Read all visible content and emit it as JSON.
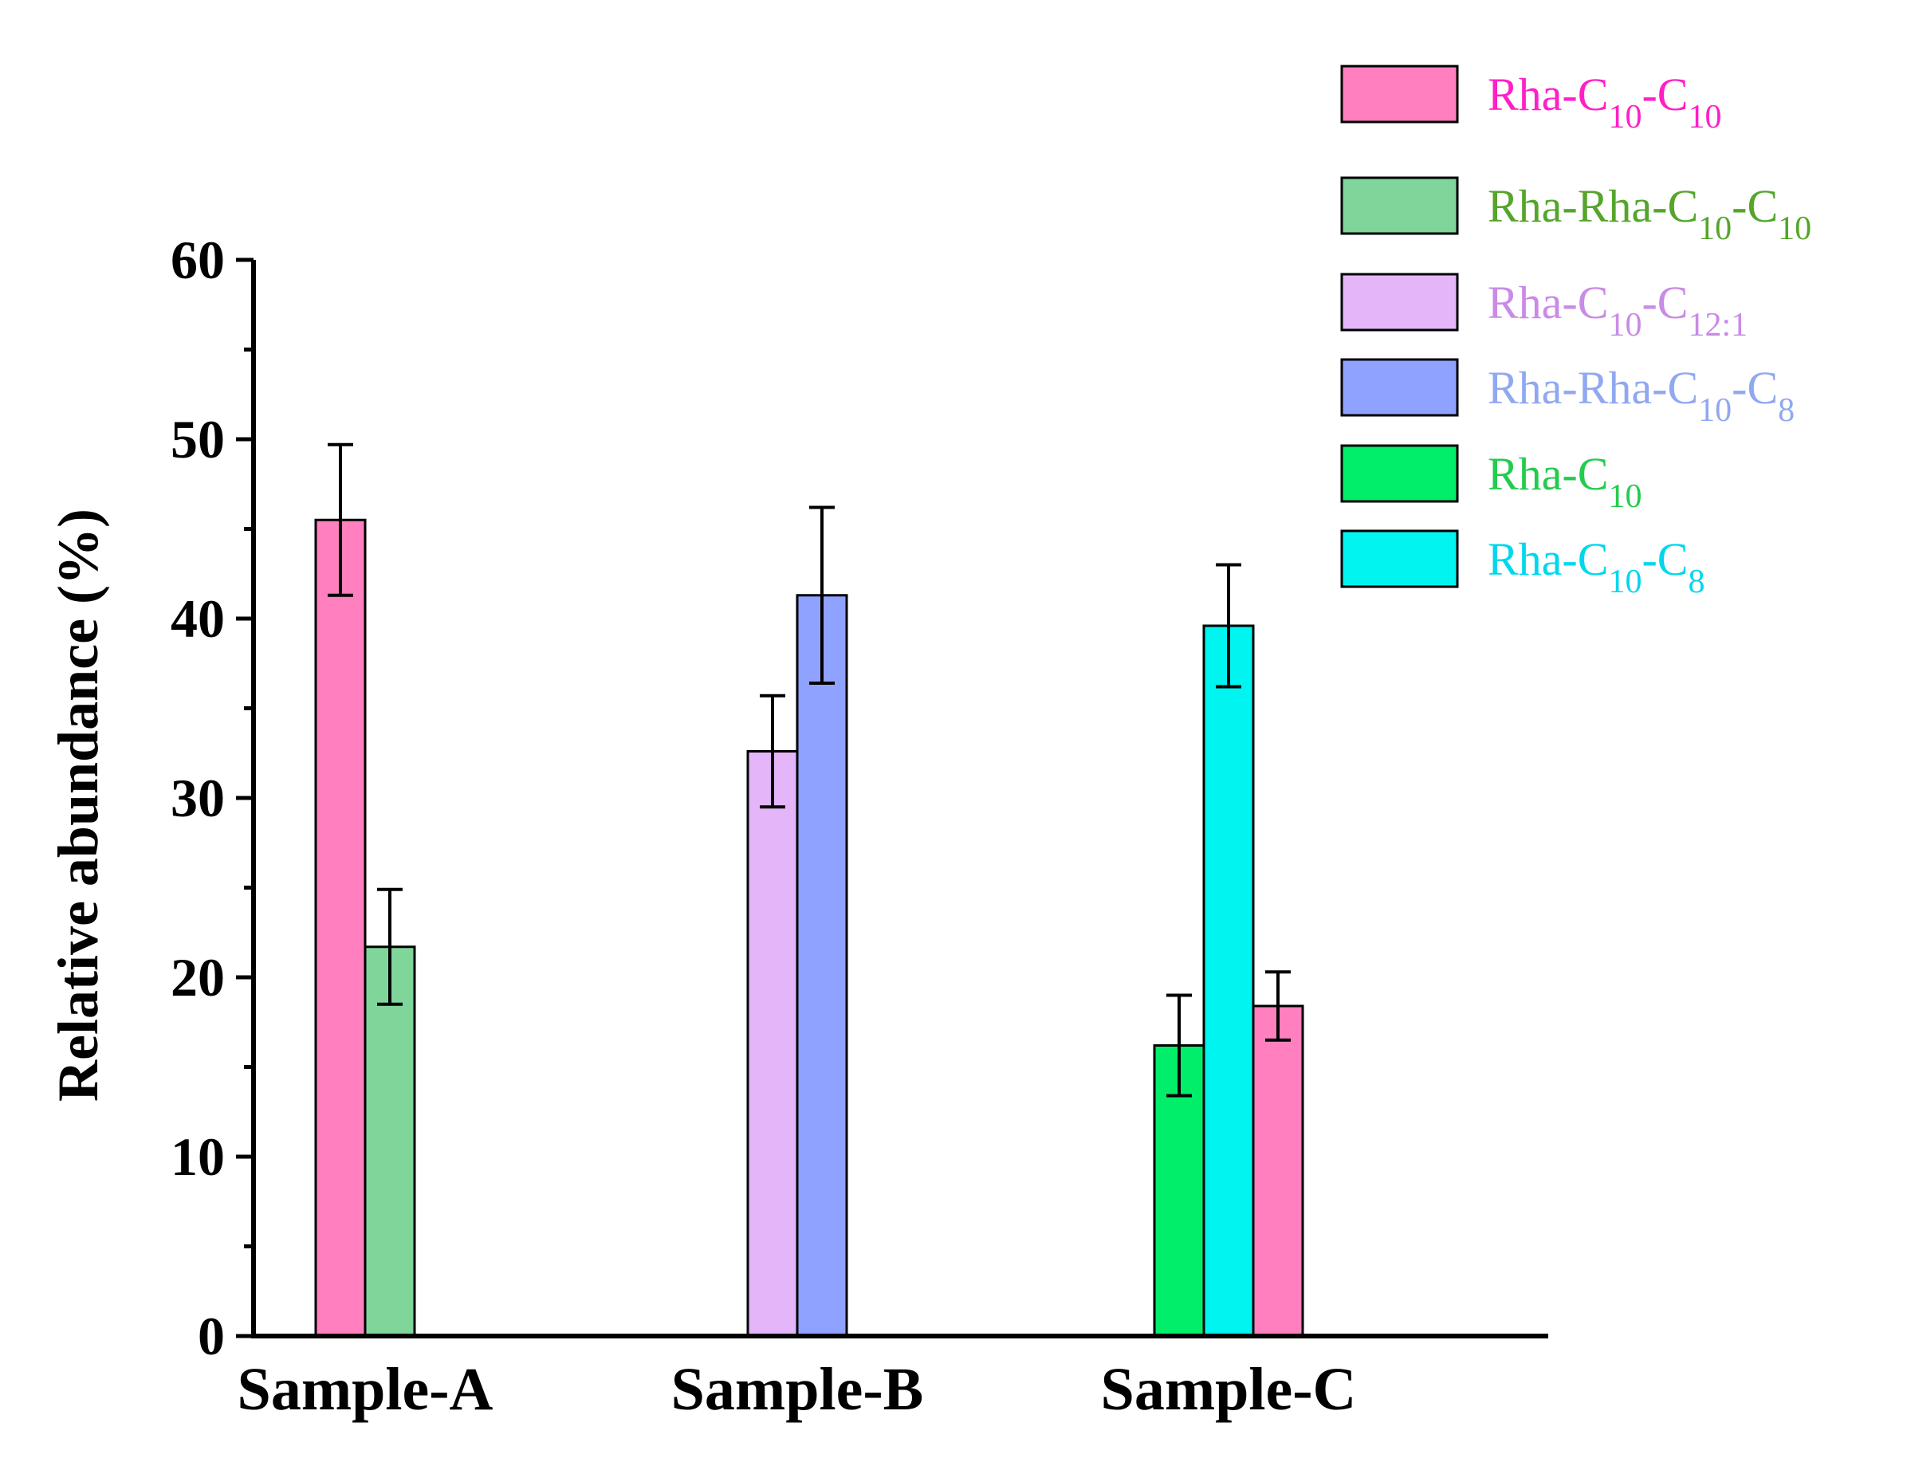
{
  "chart_data": {
    "type": "bar",
    "title": "",
    "xlabel": "",
    "ylabel": "Relative abundance (%)",
    "ylim": [
      0,
      60
    ],
    "yticks": [
      0,
      10,
      20,
      30,
      40,
      50,
      60
    ],
    "categories": [
      "Sample-A",
      "Sample-B",
      "Sample-C"
    ],
    "legend_position": "top-right",
    "series": [
      {
        "name": "Rha-C10-C10",
        "base": "Rha-C",
        "sub1": "10",
        "mid": "-C",
        "sub2": "10",
        "color": "#ff7fbf",
        "text_color": "#ff1fc8"
      },
      {
        "name": "Rha-Rha-C10-C10",
        "base": "Rha-Rha-C",
        "sub1": "10",
        "mid": "-C",
        "sub2": "10",
        "color": "#80d59b",
        "text_color": "#55a52a"
      },
      {
        "name": "Rha-C10-C12:1",
        "base": "Rha-C",
        "sub1": "10",
        "mid": "-C",
        "sub2": "12:1",
        "color": "#e4b6f9",
        "text_color": "#c98be6"
      },
      {
        "name": "Rha-Rha-C10-C8",
        "base": "Rha-Rha-C",
        "sub1": "10",
        "mid": "-C",
        "sub2": "8",
        "color": "#90a2ff",
        "text_color": "#90a8f0"
      },
      {
        "name": "Rha-C10",
        "base": "Rha-C",
        "sub1": "10",
        "mid": "",
        "sub2": "",
        "color": "#00ee6a",
        "text_color": "#22cc4c"
      },
      {
        "name": "Rha-C10-C8",
        "base": "Rha-C",
        "sub1": "10",
        "mid": "-C",
        "sub2": "8",
        "color": "#00f5f0",
        "text_color": "#00d7ee"
      }
    ],
    "bars": [
      {
        "category": "Sample-A",
        "series": "Rha-C10-C10",
        "value": 45.5,
        "error": 4.2
      },
      {
        "category": "Sample-A",
        "series": "Rha-Rha-C10-C10",
        "value": 21.7,
        "error": 3.2
      },
      {
        "category": "Sample-B",
        "series": "Rha-C10-C12:1",
        "value": 32.6,
        "error": 3.1
      },
      {
        "category": "Sample-B",
        "series": "Rha-Rha-C10-C8",
        "value": 41.3,
        "error": 4.9
      },
      {
        "category": "Sample-C",
        "series": "Rha-C10",
        "value": 16.2,
        "error": 2.8
      },
      {
        "category": "Sample-C",
        "series": "Rha-C10-C8",
        "value": 39.6,
        "error": 3.4
      },
      {
        "category": "Sample-C",
        "series": "Rha-C10-C10",
        "value": 18.4,
        "error": 1.9
      }
    ]
  }
}
